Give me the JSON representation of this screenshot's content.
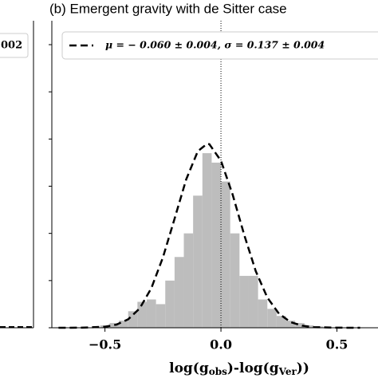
{
  "chart_data": {
    "type": "histogram",
    "title": "(b) Emergent gravity with de Sitter case",
    "xlabel_parts": [
      "log(g",
      "obs",
      ")-log(g",
      "Ver",
      "))"
    ],
    "bins": [
      -0.52,
      -0.48,
      -0.44,
      -0.4,
      -0.36,
      -0.32,
      -0.28,
      -0.24,
      -0.2,
      -0.16,
      -0.12,
      -0.08,
      -0.04,
      0.0,
      0.04,
      0.08,
      0.12,
      0.16,
      0.2,
      0.24,
      0.28,
      0.32,
      0.36,
      0.4,
      0.44
    ],
    "counts": [
      0.05,
      0.1,
      0.15,
      0.35,
      0.55,
      0.6,
      0.5,
      1.0,
      1.5,
      2.0,
      2.8,
      3.7,
      3.5,
      3.1,
      2.0,
      1.1,
      1.1,
      0.6,
      0.4,
      0.25,
      0.15,
      0.1,
      0.05,
      0.03
    ],
    "color": "#bdbdbd",
    "fit": {
      "name": "μ = − 0.060 ± 0.004, σ = 0.137 ± 0.004",
      "color": "#000000",
      "x": [
        -0.7,
        -0.6,
        -0.5,
        -0.45,
        -0.4,
        -0.35,
        -0.3,
        -0.25,
        -0.2,
        -0.15,
        -0.1,
        -0.06,
        -0.05,
        0.0,
        0.05,
        0.1,
        0.15,
        0.2,
        0.25,
        0.3,
        0.35,
        0.4,
        0.5,
        0.6
      ],
      "values": [
        0.0,
        0.0016,
        0.022,
        0.068,
        0.18,
        0.41,
        0.84,
        1.49,
        2.31,
        3.14,
        3.74,
        3.9,
        3.89,
        3.54,
        2.83,
        1.97,
        1.2,
        0.64,
        0.3,
        0.12,
        0.044,
        0.014,
        0.0009,
        0.0
      ]
    },
    "vline": 0,
    "xlim": [
      -0.729,
      0.677
    ],
    "ylim": [
      0,
      6
    ],
    "xticks": [
      {
        "value": -0.5,
        "label": "−0.5"
      },
      {
        "value": 0,
        "label": "0.0"
      },
      0.5
    ],
    "yticks": [
      0,
      1,
      2,
      3,
      4,
      5,
      6
    ]
  },
  "left_fragment": {
    "legend_text": "002"
  }
}
